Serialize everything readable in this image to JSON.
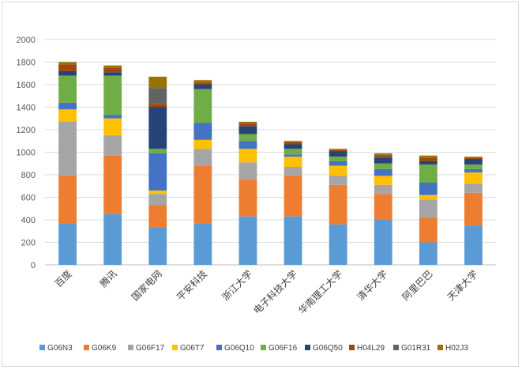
{
  "chart_data": {
    "type": "bar",
    "stacked": true,
    "title": "",
    "xlabel": "",
    "ylabel": "",
    "ylim": [
      0,
      2000
    ],
    "yticks": [
      0,
      200,
      400,
      600,
      800,
      1000,
      1200,
      1400,
      1600,
      1800,
      2000
    ],
    "grid": true,
    "legend_position": "bottom",
    "categories": [
      "百度",
      "腾讯",
      "国家电网",
      "平安科技",
      "浙江大学",
      "电子科技大学",
      "华南理工大学",
      "清华大学",
      "阿里巴巴",
      "天津大学"
    ],
    "series": [
      {
        "name": "G06N3",
        "color": "#5b9bd5",
        "values": [
          370,
          450,
          330,
          370,
          430,
          430,
          360,
          400,
          200,
          350
        ]
      },
      {
        "name": "G06K9",
        "color": "#ed7d31",
        "values": [
          420,
          520,
          200,
          510,
          330,
          360,
          350,
          230,
          220,
          290
        ]
      },
      {
        "name": "G06F17",
        "color": "#a5a5a5",
        "values": [
          480,
          180,
          100,
          150,
          150,
          80,
          80,
          80,
          160,
          80
        ]
      },
      {
        "name": "G06T7",
        "color": "#ffc000",
        "values": [
          110,
          150,
          30,
          80,
          120,
          90,
          90,
          80,
          40,
          100
        ]
      },
      {
        "name": "G06Q10",
        "color": "#4472c4",
        "values": [
          60,
          30,
          330,
          150,
          70,
          20,
          40,
          60,
          110,
          30
        ]
      },
      {
        "name": "G06F16",
        "color": "#70ad47",
        "values": [
          240,
          350,
          40,
          300,
          60,
          50,
          40,
          50,
          160,
          40
        ]
      },
      {
        "name": "G06Q50",
        "color": "#264478",
        "values": [
          40,
          30,
          370,
          40,
          70,
          40,
          50,
          50,
          30,
          50
        ]
      },
      {
        "name": "H04L29",
        "color": "#9e480e",
        "values": [
          60,
          40,
          30,
          20,
          20,
          20,
          10,
          20,
          30,
          10
        ]
      },
      {
        "name": "G01R31",
        "color": "#636363",
        "values": [
          0,
          0,
          140,
          0,
          10,
          0,
          0,
          10,
          0,
          0
        ]
      },
      {
        "name": "H02J3",
        "color": "#997300",
        "values": [
          20,
          20,
          100,
          20,
          10,
          10,
          10,
          10,
          20,
          10
        ]
      }
    ]
  }
}
